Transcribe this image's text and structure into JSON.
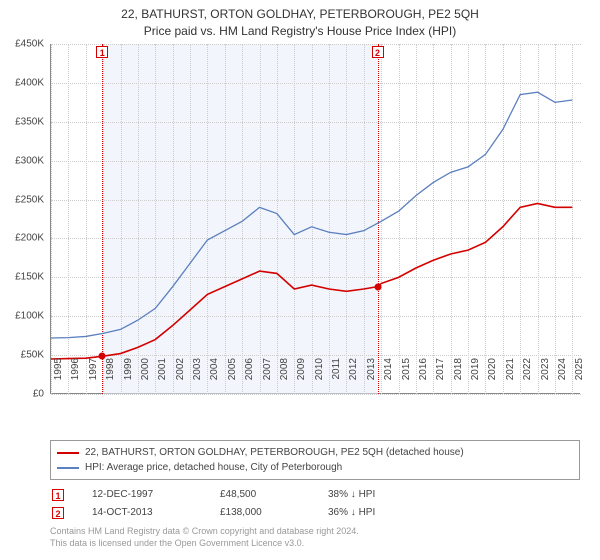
{
  "title": {
    "line1": "22, BATHURST, ORTON GOLDHAY, PETERBOROUGH, PE2 5QH",
    "line2": "Price paid vs. HM Land Registry's House Price Index (HPI)"
  },
  "chart": {
    "type": "line",
    "y": {
      "min": 0,
      "max": 450000,
      "ticks": [
        0,
        50000,
        100000,
        150000,
        200000,
        250000,
        300000,
        350000,
        400000,
        450000
      ],
      "labels": [
        "£0",
        "£50K",
        "£100K",
        "£150K",
        "£200K",
        "£250K",
        "£300K",
        "£350K",
        "£400K",
        "£450K"
      ],
      "label_fontsize": 10
    },
    "x": {
      "min": 1995,
      "max": 2025.5,
      "ticks": [
        1995,
        1996,
        1997,
        1998,
        1999,
        2000,
        2001,
        2002,
        2003,
        2004,
        2005,
        2006,
        2007,
        2008,
        2009,
        2010,
        2011,
        2012,
        2013,
        2014,
        2015,
        2016,
        2017,
        2018,
        2019,
        2020,
        2021,
        2022,
        2023,
        2024,
        2025
      ],
      "label_fontsize": 10
    },
    "grid_color": "#cccccc",
    "background_color": "#ffffff",
    "shade_color": "#e8eef9",
    "shade_from": 1997.95,
    "shade_to": 2013.79,
    "series": [
      {
        "name": "property",
        "label": "22, BATHURST, ORTON GOLDHAY, PETERBOROUGH, PE2 5QH (detached house)",
        "color": "#d40000",
        "width": 1.6,
        "points": [
          [
            1995,
            45000
          ],
          [
            1996,
            45500
          ],
          [
            1997,
            46000
          ],
          [
            1997.95,
            48500
          ],
          [
            1999,
            52000
          ],
          [
            2000,
            60000
          ],
          [
            2001,
            70000
          ],
          [
            2002,
            88000
          ],
          [
            2003,
            108000
          ],
          [
            2004,
            128000
          ],
          [
            2005,
            138000
          ],
          [
            2006,
            148000
          ],
          [
            2007,
            158000
          ],
          [
            2008,
            155000
          ],
          [
            2009,
            135000
          ],
          [
            2010,
            140000
          ],
          [
            2011,
            135000
          ],
          [
            2012,
            132000
          ],
          [
            2013,
            135000
          ],
          [
            2013.79,
            138000
          ],
          [
            2014,
            142000
          ],
          [
            2015,
            150000
          ],
          [
            2016,
            162000
          ],
          [
            2017,
            172000
          ],
          [
            2018,
            180000
          ],
          [
            2019,
            185000
          ],
          [
            2020,
            195000
          ],
          [
            2021,
            215000
          ],
          [
            2022,
            240000
          ],
          [
            2023,
            245000
          ],
          [
            2024,
            240000
          ],
          [
            2025,
            240000
          ]
        ]
      },
      {
        "name": "hpi",
        "label": "HPI: Average price, detached house, City of Peterborough",
        "color": "#5b7fbf",
        "width": 1.3,
        "points": [
          [
            1995,
            72000
          ],
          [
            1996,
            72500
          ],
          [
            1997,
            74000
          ],
          [
            1998,
            78000
          ],
          [
            1999,
            83000
          ],
          [
            2000,
            95000
          ],
          [
            2001,
            110000
          ],
          [
            2002,
            138000
          ],
          [
            2003,
            168000
          ],
          [
            2004,
            198000
          ],
          [
            2005,
            210000
          ],
          [
            2006,
            222000
          ],
          [
            2007,
            240000
          ],
          [
            2008,
            232000
          ],
          [
            2009,
            205000
          ],
          [
            2010,
            215000
          ],
          [
            2011,
            208000
          ],
          [
            2012,
            205000
          ],
          [
            2013,
            210000
          ],
          [
            2014,
            222000
          ],
          [
            2015,
            235000
          ],
          [
            2016,
            255000
          ],
          [
            2017,
            272000
          ],
          [
            2018,
            285000
          ],
          [
            2019,
            292000
          ],
          [
            2020,
            308000
          ],
          [
            2021,
            340000
          ],
          [
            2022,
            385000
          ],
          [
            2023,
            388000
          ],
          [
            2024,
            375000
          ],
          [
            2025,
            378000
          ]
        ]
      }
    ],
    "markers": [
      {
        "n": "1",
        "x": 1997.95,
        "y": 48500,
        "color": "#d40000"
      },
      {
        "n": "2",
        "x": 2013.79,
        "y": 138000,
        "color": "#d40000"
      }
    ],
    "marker_line_color": "#d40000"
  },
  "sales": [
    {
      "n": "1",
      "date": "12-DEC-1997",
      "price": "£48,500",
      "diff": "38% ↓ HPI"
    },
    {
      "n": "2",
      "date": "14-OCT-2013",
      "price": "£138,000",
      "diff": "36% ↓ HPI"
    }
  ],
  "footer": {
    "line1": "Contains HM Land Registry data © Crown copyright and database right 2024.",
    "line2": "This data is licensed under the Open Government Licence v3.0."
  }
}
